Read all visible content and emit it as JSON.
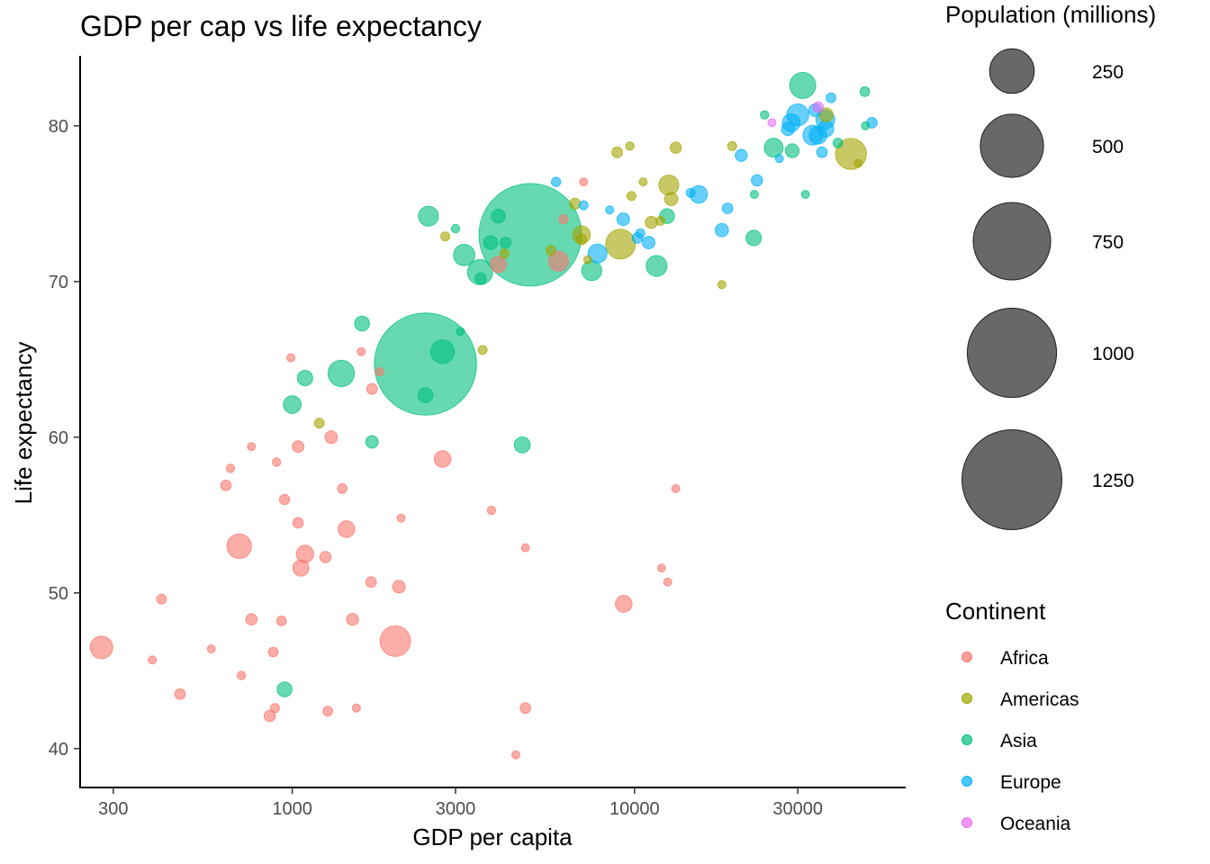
{
  "chart_data": {
    "type": "scatter",
    "title": "GDP per cap vs life expectancy",
    "xlabel": "GDP per capita",
    "ylabel": "Life expectancy",
    "x_scale": "log10",
    "xlim": [
      240,
      62000
    ],
    "ylim": [
      37.5,
      84.5
    ],
    "x_ticks": [
      300,
      1000,
      3000,
      10000,
      30000
    ],
    "x_tick_labels": [
      "300",
      "1000",
      "3000",
      "10000",
      "30000"
    ],
    "y_ticks": [
      40,
      50,
      60,
      70,
      80
    ],
    "y_tick_labels": [
      "40",
      "50",
      "60",
      "70",
      "80"
    ],
    "grid": false,
    "size_legend": {
      "title": "Population (millions)",
      "values": [
        250,
        500,
        750,
        1000,
        1250
      ],
      "labels": [
        "250",
        "500",
        "750",
        "1000",
        "1250"
      ],
      "color": "#4d4d4d",
      "placement": "top-right"
    },
    "color_legend": {
      "title": "Continent",
      "placement": "right",
      "entries": [
        {
          "name": "Africa",
          "color": "#F8766D"
        },
        {
          "name": "Americas",
          "color": "#A3A500"
        },
        {
          "name": "Asia",
          "color": "#00BF7D"
        },
        {
          "name": "Europe",
          "color": "#00B0F6"
        },
        {
          "name": "Oceania",
          "color": "#E76BF3"
        }
      ]
    },
    "series": [
      {
        "name": "Africa",
        "color": "#F8766D",
        "points": [
          [
            277,
            46.5,
            64
          ],
          [
            415,
            49.6,
            12
          ],
          [
            390,
            45.7,
            8
          ],
          [
            470,
            43.5,
            14
          ],
          [
            580,
            46.4,
            5
          ],
          [
            640,
            56.9,
            14
          ],
          [
            660,
            58.0,
            9
          ],
          [
            700,
            53.0,
            76
          ],
          [
            710,
            44.7,
            9
          ],
          [
            760,
            59.4,
            6
          ],
          [
            760,
            48.3,
            16
          ],
          [
            860,
            42.1,
            16
          ],
          [
            880,
            46.2,
            12
          ],
          [
            890,
            42.6,
            10
          ],
          [
            900,
            58.4,
            9
          ],
          [
            930,
            48.2,
            12
          ],
          [
            950,
            56.0,
            13
          ],
          [
            990,
            65.1,
            2
          ],
          [
            1040,
            59.4,
            17
          ],
          [
            1040,
            54.5,
            14
          ],
          [
            1060,
            51.6,
            33
          ],
          [
            1090,
            52.5,
            38
          ],
          [
            1250,
            52.3,
            16
          ],
          [
            1270,
            42.4,
            12
          ],
          [
            1300,
            60.0,
            20
          ],
          [
            1400,
            56.7,
            12
          ],
          [
            1440,
            54.1,
            35
          ],
          [
            1500,
            48.3,
            18
          ],
          [
            1540,
            42.6,
            4
          ],
          [
            1590,
            65.5,
            1
          ],
          [
            1700,
            50.7,
            14
          ],
          [
            1710,
            63.1,
            14
          ],
          [
            1800,
            64.2,
            9
          ],
          [
            2000,
            46.9,
            118
          ],
          [
            2050,
            50.4,
            20
          ],
          [
            2080,
            54.8,
            3
          ],
          [
            2750,
            58.6,
            35
          ],
          [
            3820,
            55.3,
            9
          ],
          [
            4000,
            71.1,
            32
          ],
          [
            4500,
            39.6,
            4
          ],
          [
            4800,
            52.9,
            5
          ],
          [
            4800,
            42.6,
            14
          ],
          [
            6000,
            71.3,
            50
          ],
          [
            6200,
            74.0,
            10
          ],
          [
            7100,
            76.4,
            2
          ],
          [
            9300,
            49.3,
            35
          ],
          [
            12000,
            51.6,
            3
          ],
          [
            12500,
            50.7,
            4
          ],
          [
            13200,
            56.7,
            3
          ]
        ]
      },
      {
        "name": "Americas",
        "color": "#A3A500",
        "points": [
          [
            1200,
            60.9,
            12
          ],
          [
            2800,
            72.9,
            10
          ],
          [
            3600,
            65.6,
            10
          ],
          [
            4170,
            71.8,
            10
          ],
          [
            5700,
            72.0,
            12
          ],
          [
            6700,
            75.0,
            15
          ],
          [
            7000,
            73.0,
            40
          ],
          [
            7000,
            72.7,
            14
          ],
          [
            7300,
            71.4,
            6
          ],
          [
            8900,
            78.3,
            14
          ],
          [
            9100,
            72.4,
            110
          ],
          [
            9700,
            78.7,
            9
          ],
          [
            9800,
            75.5,
            10
          ],
          [
            10600,
            76.4,
            7
          ],
          [
            11200,
            73.8,
            18
          ],
          [
            11900,
            73.9,
            10
          ],
          [
            12600,
            76.2,
            50
          ],
          [
            12800,
            75.3,
            22
          ],
          [
            13200,
            78.6,
            16
          ],
          [
            18000,
            69.8,
            5
          ],
          [
            19300,
            78.7,
            10
          ],
          [
            36300,
            80.7,
            25
          ],
          [
            42900,
            78.2,
            120
          ],
          [
            45000,
            77.6,
            6
          ]
        ]
      },
      {
        "name": "Asia",
        "color": "#00BF7D",
        "points": [
          [
            950,
            43.8,
            28
          ],
          [
            1000,
            62.1,
            40
          ],
          [
            1090,
            63.8,
            30
          ],
          [
            1390,
            64.1,
            88
          ],
          [
            1600,
            67.3,
            28
          ],
          [
            1710,
            59.7,
            20
          ],
          [
            2450,
            62.7,
            28
          ],
          [
            2450,
            64.7,
            1310
          ],
          [
            2500,
            74.2,
            50
          ],
          [
            2750,
            65.5,
            70
          ],
          [
            3000,
            73.4,
            9
          ],
          [
            3100,
            66.8,
            6
          ],
          [
            3180,
            71.7,
            58
          ],
          [
            3540,
            70.6,
            80
          ],
          [
            3550,
            70.2,
            16
          ],
          [
            3800,
            72.5,
            24
          ],
          [
            4000,
            74.2,
            24
          ],
          [
            4200,
            72.5,
            15
          ],
          [
            4700,
            59.5,
            32
          ],
          [
            4960,
            73.0,
            1320
          ],
          [
            7500,
            70.7,
            50
          ],
          [
            11600,
            71.0,
            55
          ],
          [
            12450,
            74.2,
            28
          ],
          [
            22300,
            72.8,
            30
          ],
          [
            22400,
            75.6,
            8
          ],
          [
            24000,
            80.7,
            9
          ],
          [
            25500,
            78.6,
            45
          ],
          [
            28900,
            78.4,
            24
          ],
          [
            31000,
            82.6,
            86
          ],
          [
            31600,
            75.6,
            4
          ],
          [
            39300,
            78.9,
            12
          ],
          [
            47100,
            82.2,
            12
          ],
          [
            47300,
            80.0,
            8
          ]
        ]
      },
      {
        "name": "Europe",
        "color": "#00B0F6",
        "points": [
          [
            5900,
            76.4,
            11
          ],
          [
            7100,
            74.9,
            10
          ],
          [
            7800,
            71.8,
            46
          ],
          [
            8460,
            74.6,
            4
          ],
          [
            9270,
            74.0,
            20
          ],
          [
            10200,
            72.8,
            14
          ],
          [
            10400,
            73.1,
            10
          ],
          [
            11000,
            72.5,
            20
          ],
          [
            14600,
            75.7,
            10
          ],
          [
            15400,
            75.6,
            38
          ],
          [
            18000,
            73.3,
            22
          ],
          [
            18700,
            74.7,
            14
          ],
          [
            20500,
            78.1,
            18
          ],
          [
            22800,
            76.5,
            16
          ],
          [
            26500,
            77.9,
            7
          ],
          [
            28100,
            79.8,
            22
          ],
          [
            28700,
            80.2,
            40
          ],
          [
            30000,
            80.7,
            60
          ],
          [
            33200,
            79.4,
            50
          ],
          [
            33700,
            81.0,
            20
          ],
          [
            34400,
            79.4,
            40
          ],
          [
            35300,
            78.3,
            14
          ],
          [
            36100,
            80.4,
            45
          ],
          [
            36200,
            79.8,
            32
          ],
          [
            37500,
            81.8,
            12
          ],
          [
            49400,
            80.2,
            14
          ]
        ]
      },
      {
        "name": "Oceania",
        "color": "#E76BF3",
        "points": [
          [
            25200,
            80.2,
            8
          ],
          [
            34400,
            81.2,
            14
          ]
        ]
      }
    ]
  }
}
